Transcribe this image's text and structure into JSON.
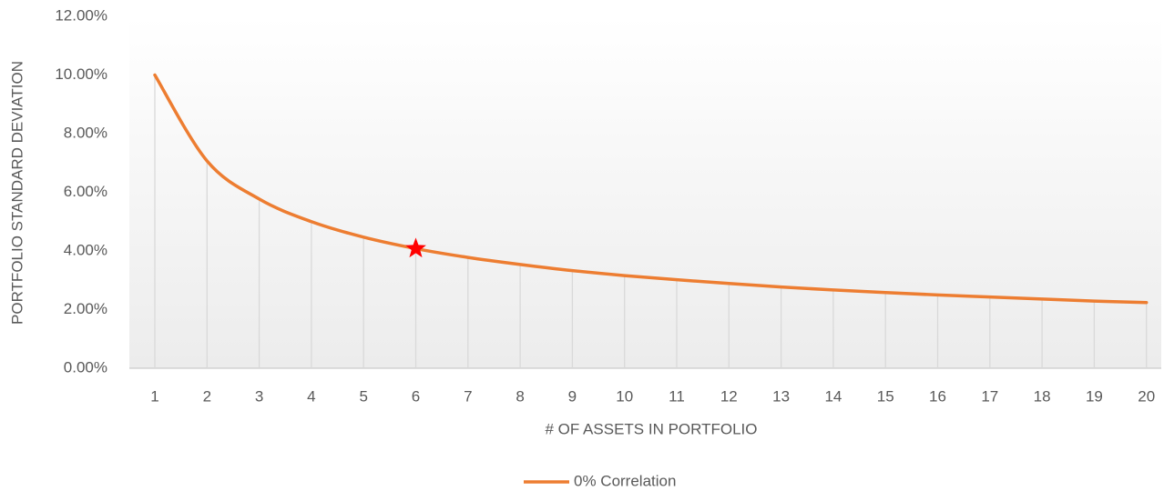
{
  "chart_data": {
    "type": "line",
    "y_label": "PORTFOLIO STANDARD DEVIATION",
    "x_label": "# OF ASSETS IN PORTFOLIO",
    "categories": [
      "1",
      "2",
      "3",
      "4",
      "5",
      "6",
      "7",
      "8",
      "9",
      "10",
      "11",
      "12",
      "13",
      "14",
      "15",
      "16",
      "17",
      "18",
      "19",
      "20"
    ],
    "series": [
      {
        "name": "0% Correlation",
        "color": "#ed7d31",
        "values": [
          10,
          7.07,
          5.77,
          5,
          4.47,
          4.08,
          3.78,
          3.54,
          3.33,
          3.16,
          3.02,
          2.89,
          2.77,
          2.67,
          2.58,
          2.5,
          2.43,
          2.36,
          2.29,
          2.24
        ]
      }
    ],
    "ylim": [
      0,
      12
    ],
    "yticks": [
      {
        "value": 0,
        "label": "0.00%"
      },
      {
        "value": 2,
        "label": "2.00%"
      },
      {
        "value": 4,
        "label": "4.00%"
      },
      {
        "value": 6,
        "label": "6.00%"
      },
      {
        "value": 8,
        "label": "8.00%"
      },
      {
        "value": 10,
        "label": "10.00%"
      },
      {
        "value": 12,
        "label": "12.00%"
      }
    ],
    "drop_lines": true,
    "highlight_index": 5,
    "highlight_color": "#ff0000",
    "legend": "bottom"
  }
}
